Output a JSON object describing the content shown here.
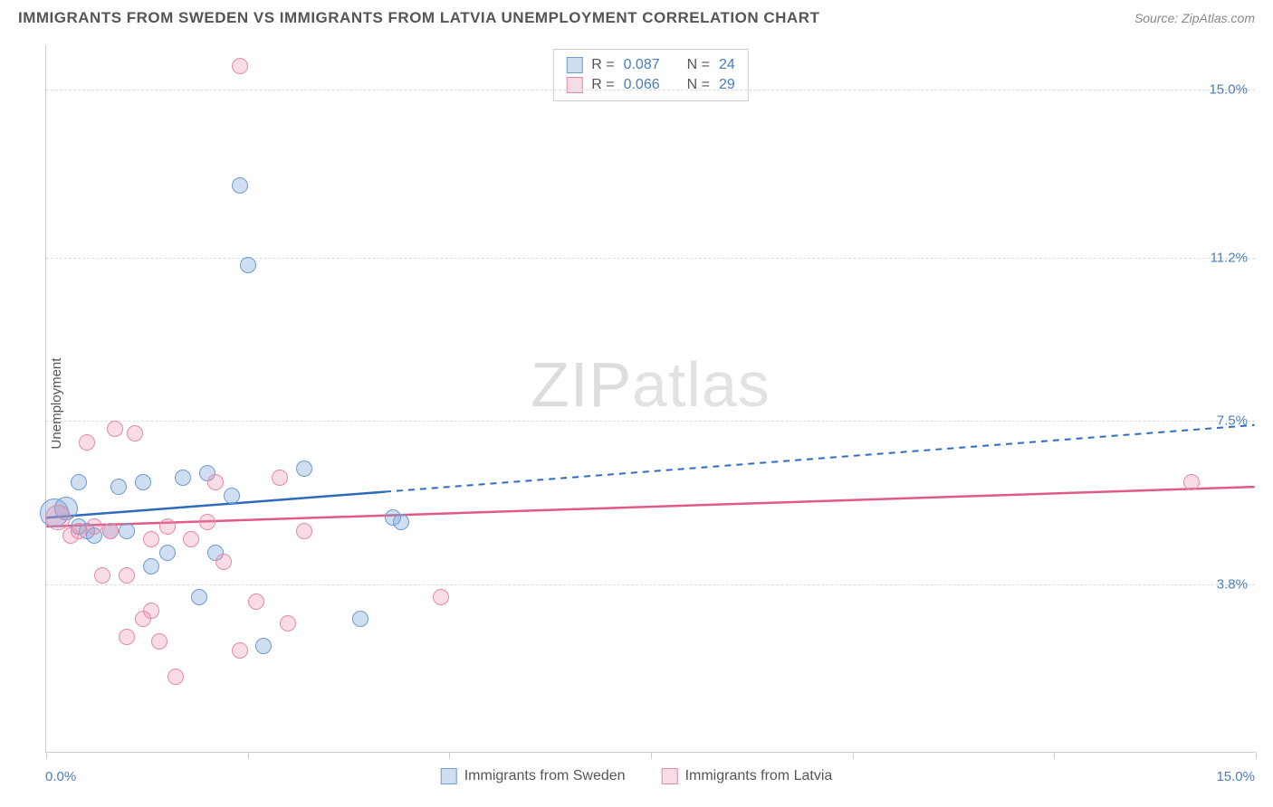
{
  "header": {
    "title": "IMMIGRANTS FROM SWEDEN VS IMMIGRANTS FROM LATVIA UNEMPLOYMENT CORRELATION CHART",
    "source": "Source: ZipAtlas.com"
  },
  "chart": {
    "type": "scatter",
    "y_axis_label": "Unemployment",
    "watermark": "ZIPatlas",
    "xlim": [
      0,
      15.0
    ],
    "ylim": [
      0,
      16.0
    ],
    "x_labels": {
      "min": "0.0%",
      "max": "15.0%"
    },
    "y_ticks": [
      {
        "value": 15.0,
        "label": "15.0%"
      },
      {
        "value": 11.2,
        "label": "11.2%"
      },
      {
        "value": 7.5,
        "label": "7.5%"
      },
      {
        "value": 3.8,
        "label": "3.8%"
      }
    ],
    "x_tick_positions": [
      0,
      2.5,
      5.0,
      7.5,
      10.0,
      12.5,
      15.0
    ],
    "grid_color": "#dddddd",
    "background_color": "#ffffff",
    "series": [
      {
        "name": "Immigrants from Sweden",
        "key": "sweden",
        "color_fill": "rgba(120,160,216,0.35)",
        "color_stroke": "#6e9bd1",
        "line_color": "#2e6bbf",
        "marker_radius": 9,
        "regression": {
          "x1": 0,
          "y1": 5.3,
          "x2": 15,
          "y2": 7.4,
          "solid_until_x": 4.2
        },
        "stats": {
          "R": "0.087",
          "N": "24"
        },
        "points": [
          {
            "x": 0.1,
            "y": 5.4,
            "r": 16
          },
          {
            "x": 0.25,
            "y": 5.5,
            "r": 13
          },
          {
            "x": 0.4,
            "y": 6.1
          },
          {
            "x": 0.4,
            "y": 5.1
          },
          {
            "x": 0.5,
            "y": 5.0
          },
          {
            "x": 0.6,
            "y": 4.9
          },
          {
            "x": 0.8,
            "y": 5.0
          },
          {
            "x": 0.9,
            "y": 6.0
          },
          {
            "x": 1.0,
            "y": 5.0
          },
          {
            "x": 1.2,
            "y": 6.1
          },
          {
            "x": 1.3,
            "y": 4.2
          },
          {
            "x": 1.5,
            "y": 4.5
          },
          {
            "x": 1.7,
            "y": 6.2
          },
          {
            "x": 1.9,
            "y": 3.5
          },
          {
            "x": 2.0,
            "y": 6.3
          },
          {
            "x": 2.1,
            "y": 4.5
          },
          {
            "x": 2.3,
            "y": 5.8
          },
          {
            "x": 2.4,
            "y": 12.8
          },
          {
            "x": 2.5,
            "y": 11.0
          },
          {
            "x": 2.7,
            "y": 2.4
          },
          {
            "x": 3.2,
            "y": 6.4
          },
          {
            "x": 3.9,
            "y": 3.0
          },
          {
            "x": 4.3,
            "y": 5.3
          },
          {
            "x": 4.4,
            "y": 5.2
          }
        ]
      },
      {
        "name": "Immigrants from Latvia",
        "key": "latvia",
        "color_fill": "rgba(236,140,170,0.30)",
        "color_stroke": "#e48aa8",
        "line_color": "#e05a87",
        "marker_radius": 9,
        "regression": {
          "x1": 0,
          "y1": 5.1,
          "x2": 15,
          "y2": 6.0,
          "solid_until_x": 15
        },
        "stats": {
          "R": "0.066",
          "N": "29"
        },
        "points": [
          {
            "x": 0.15,
            "y": 5.3,
            "r": 14
          },
          {
            "x": 0.3,
            "y": 4.9
          },
          {
            "x": 0.4,
            "y": 5.0
          },
          {
            "x": 0.5,
            "y": 7.0
          },
          {
            "x": 0.6,
            "y": 5.1
          },
          {
            "x": 0.7,
            "y": 4.0
          },
          {
            "x": 0.8,
            "y": 5.0
          },
          {
            "x": 0.85,
            "y": 7.3
          },
          {
            "x": 1.0,
            "y": 2.6
          },
          {
            "x": 1.0,
            "y": 4.0
          },
          {
            "x": 1.1,
            "y": 7.2
          },
          {
            "x": 1.2,
            "y": 3.0
          },
          {
            "x": 1.3,
            "y": 4.8
          },
          {
            "x": 1.3,
            "y": 3.2
          },
          {
            "x": 1.4,
            "y": 2.5
          },
          {
            "x": 1.5,
            "y": 5.1
          },
          {
            "x": 1.6,
            "y": 1.7
          },
          {
            "x": 1.8,
            "y": 4.8
          },
          {
            "x": 2.0,
            "y": 5.2
          },
          {
            "x": 2.1,
            "y": 6.1
          },
          {
            "x": 2.2,
            "y": 4.3
          },
          {
            "x": 2.4,
            "y": 15.5
          },
          {
            "x": 2.4,
            "y": 2.3
          },
          {
            "x": 2.6,
            "y": 3.4
          },
          {
            "x": 2.9,
            "y": 6.2
          },
          {
            "x": 3.0,
            "y": 2.9
          },
          {
            "x": 3.2,
            "y": 5.0
          },
          {
            "x": 4.9,
            "y": 3.5
          },
          {
            "x": 14.2,
            "y": 6.1
          }
        ]
      }
    ],
    "bottom_legend": [
      {
        "label": "Immigrants from Sweden",
        "fill": "rgba(120,160,216,0.35)",
        "stroke": "#6e9bd1"
      },
      {
        "label": "Immigrants from Latvia",
        "fill": "rgba(236,140,170,0.30)",
        "stroke": "#e48aa8"
      }
    ],
    "stats_box_labels": {
      "R": "R =",
      "N": "N ="
    }
  }
}
